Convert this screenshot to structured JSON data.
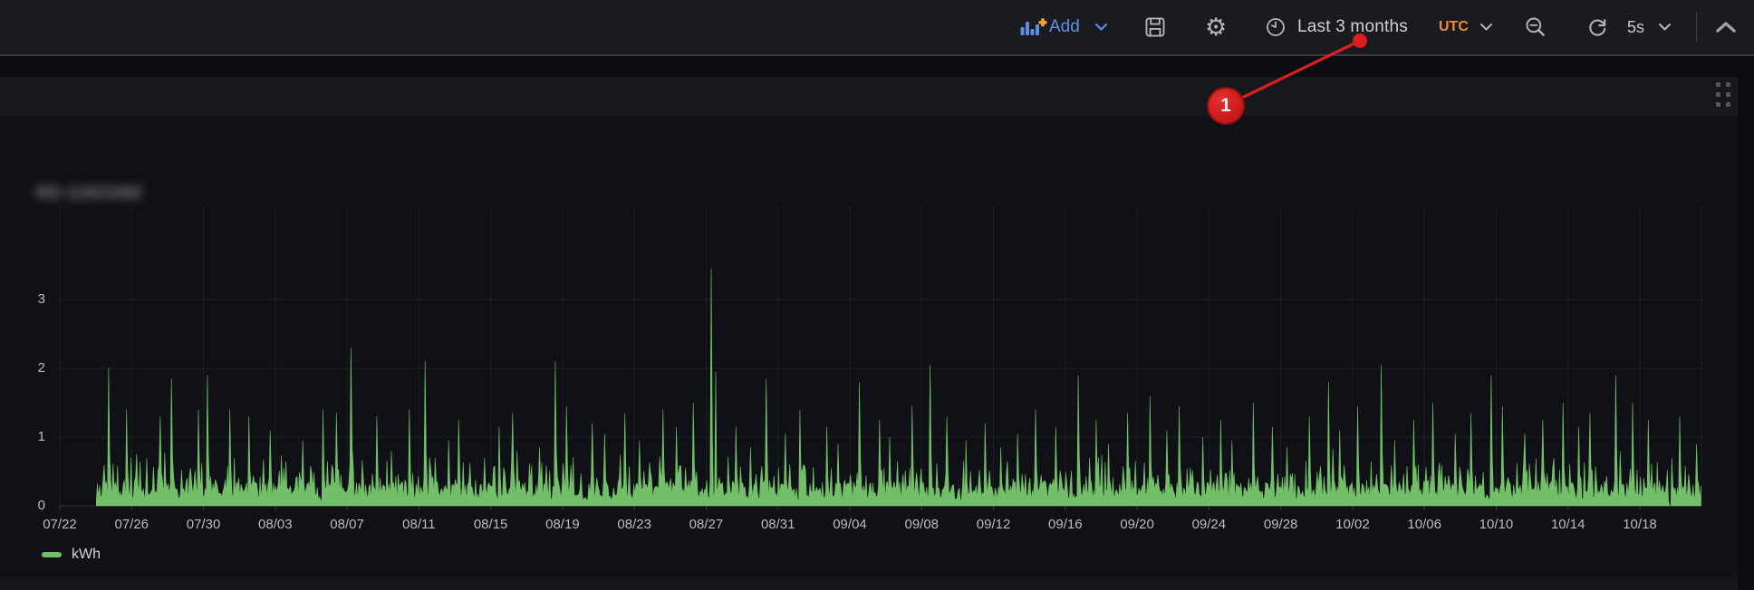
{
  "toolbar": {
    "add_label": "Add",
    "time_range_label": "Last 3 months",
    "timezone_label": "UTC",
    "refresh_interval_label": "5s",
    "icons": {
      "add_panel": "bar-chart-plus-icon",
      "save": "save-dashboard-icon",
      "settings": "gear-icon",
      "clock": "clock-icon",
      "zoom_out": "magnifier-minus-icon",
      "refresh": "refresh-icon",
      "chevron_down": "chevron-down-icon",
      "collapse": "chevron-up-icon"
    },
    "accent_blue": "#6190e8",
    "timezone_color": "#f28c2c"
  },
  "panel": {
    "title_redacted_text": "RD-11923392",
    "drag_handle": "grip-dots-icon"
  },
  "annotation": {
    "badge_label": "1",
    "badge_color": "#cf1d1d",
    "line_color": "#dc1e1e"
  },
  "chart_data": {
    "type": "area",
    "title": "",
    "xlabel": "",
    "ylabel": "",
    "grid": true,
    "legend": {
      "label": "kWh",
      "position": "bottom-left",
      "color": "#73bf69"
    },
    "series": [
      {
        "name": "kWh",
        "color": "#73bf69"
      }
    ],
    "x_ticks": [
      "07/22",
      "07/26",
      "07/30",
      "08/03",
      "08/07",
      "08/11",
      "08/15",
      "08/19",
      "08/23",
      "08/27",
      "08/31",
      "09/04",
      "09/08",
      "09/12",
      "09/16",
      "09/20",
      "09/24",
      "09/28",
      "10/02",
      "10/06",
      "10/10",
      "10/14",
      "10/18"
    ],
    "days_per_tick": 4,
    "y_ticks": [
      0,
      1,
      2,
      3
    ],
    "ylim": [
      0,
      4.35
    ],
    "data_start": "07/24",
    "data_end": "10/21",
    "baseline_range_kwh": [
      0.05,
      0.4
    ],
    "max_point": {
      "date": "08/27",
      "value": 3.45
    },
    "data_gap": {
      "date": "10/19"
    },
    "days": [
      "07/24",
      "07/25",
      "07/26",
      "07/27",
      "07/28",
      "07/29",
      "07/30",
      "07/31",
      "08/01",
      "08/02",
      "08/03",
      "08/04",
      "08/05",
      "08/06",
      "08/07",
      "08/08",
      "08/09",
      "08/10",
      "08/11",
      "08/12",
      "08/13",
      "08/14",
      "08/15",
      "08/16",
      "08/17",
      "08/18",
      "08/19",
      "08/20",
      "08/21",
      "08/22",
      "08/23",
      "08/24",
      "08/25",
      "08/26",
      "08/27",
      "08/28",
      "08/29",
      "08/30",
      "08/31",
      "09/01",
      "09/02",
      "09/03",
      "09/04",
      "09/05",
      "09/06",
      "09/07",
      "09/08",
      "09/09",
      "09/10",
      "09/11",
      "09/12",
      "09/13",
      "09/14",
      "09/15",
      "09/16",
      "09/17",
      "09/18",
      "09/19",
      "09/20",
      "09/21",
      "09/22",
      "09/23",
      "09/24",
      "09/25",
      "09/26",
      "09/27",
      "09/28",
      "09/29",
      "09/30",
      "10/01",
      "10/02",
      "10/03",
      "10/04",
      "10/05",
      "10/06",
      "10/07",
      "10/08",
      "10/09",
      "10/10",
      "10/11",
      "10/12",
      "10/13",
      "10/14",
      "10/15",
      "10/16",
      "10/17",
      "10/18",
      "10/19",
      "10/20",
      "10/21"
    ],
    "daily_peaks": [
      2.0,
      1.4,
      0.75,
      1.3,
      1.85,
      1.4,
      1.9,
      1.4,
      1.3,
      1.1,
      0.65,
      0.95,
      1.4,
      1.35,
      2.3,
      1.3,
      0.8,
      1.4,
      2.1,
      0.95,
      1.25,
      0.7,
      1.15,
      1.35,
      0.85,
      2.1,
      1.45,
      1.2,
      1.05,
      1.35,
      0.95,
      1.4,
      1.15,
      1.5,
      3.45,
      1.15,
      0.85,
      1.85,
      1.05,
      1.4,
      1.15,
      0.9,
      1.8,
      1.25,
      1.0,
      1.45,
      2.05,
      1.3,
      0.95,
      1.2,
      0.85,
      1.05,
      1.4,
      1.15,
      1.9,
      1.25,
      0.9,
      1.35,
      1.6,
      1.1,
      1.45,
      1.0,
      1.25,
      0.95,
      1.5,
      1.15,
      0.85,
      1.3,
      1.8,
      1.1,
      1.45,
      2.05,
      0.95,
      1.25,
      1.5,
      1.05,
      1.35,
      1.9,
      1.45,
      1.05,
      1.25,
      1.5,
      1.15,
      1.35,
      1.9,
      1.5,
      1.25,
      1.85,
      1.3,
      0.9
    ]
  }
}
